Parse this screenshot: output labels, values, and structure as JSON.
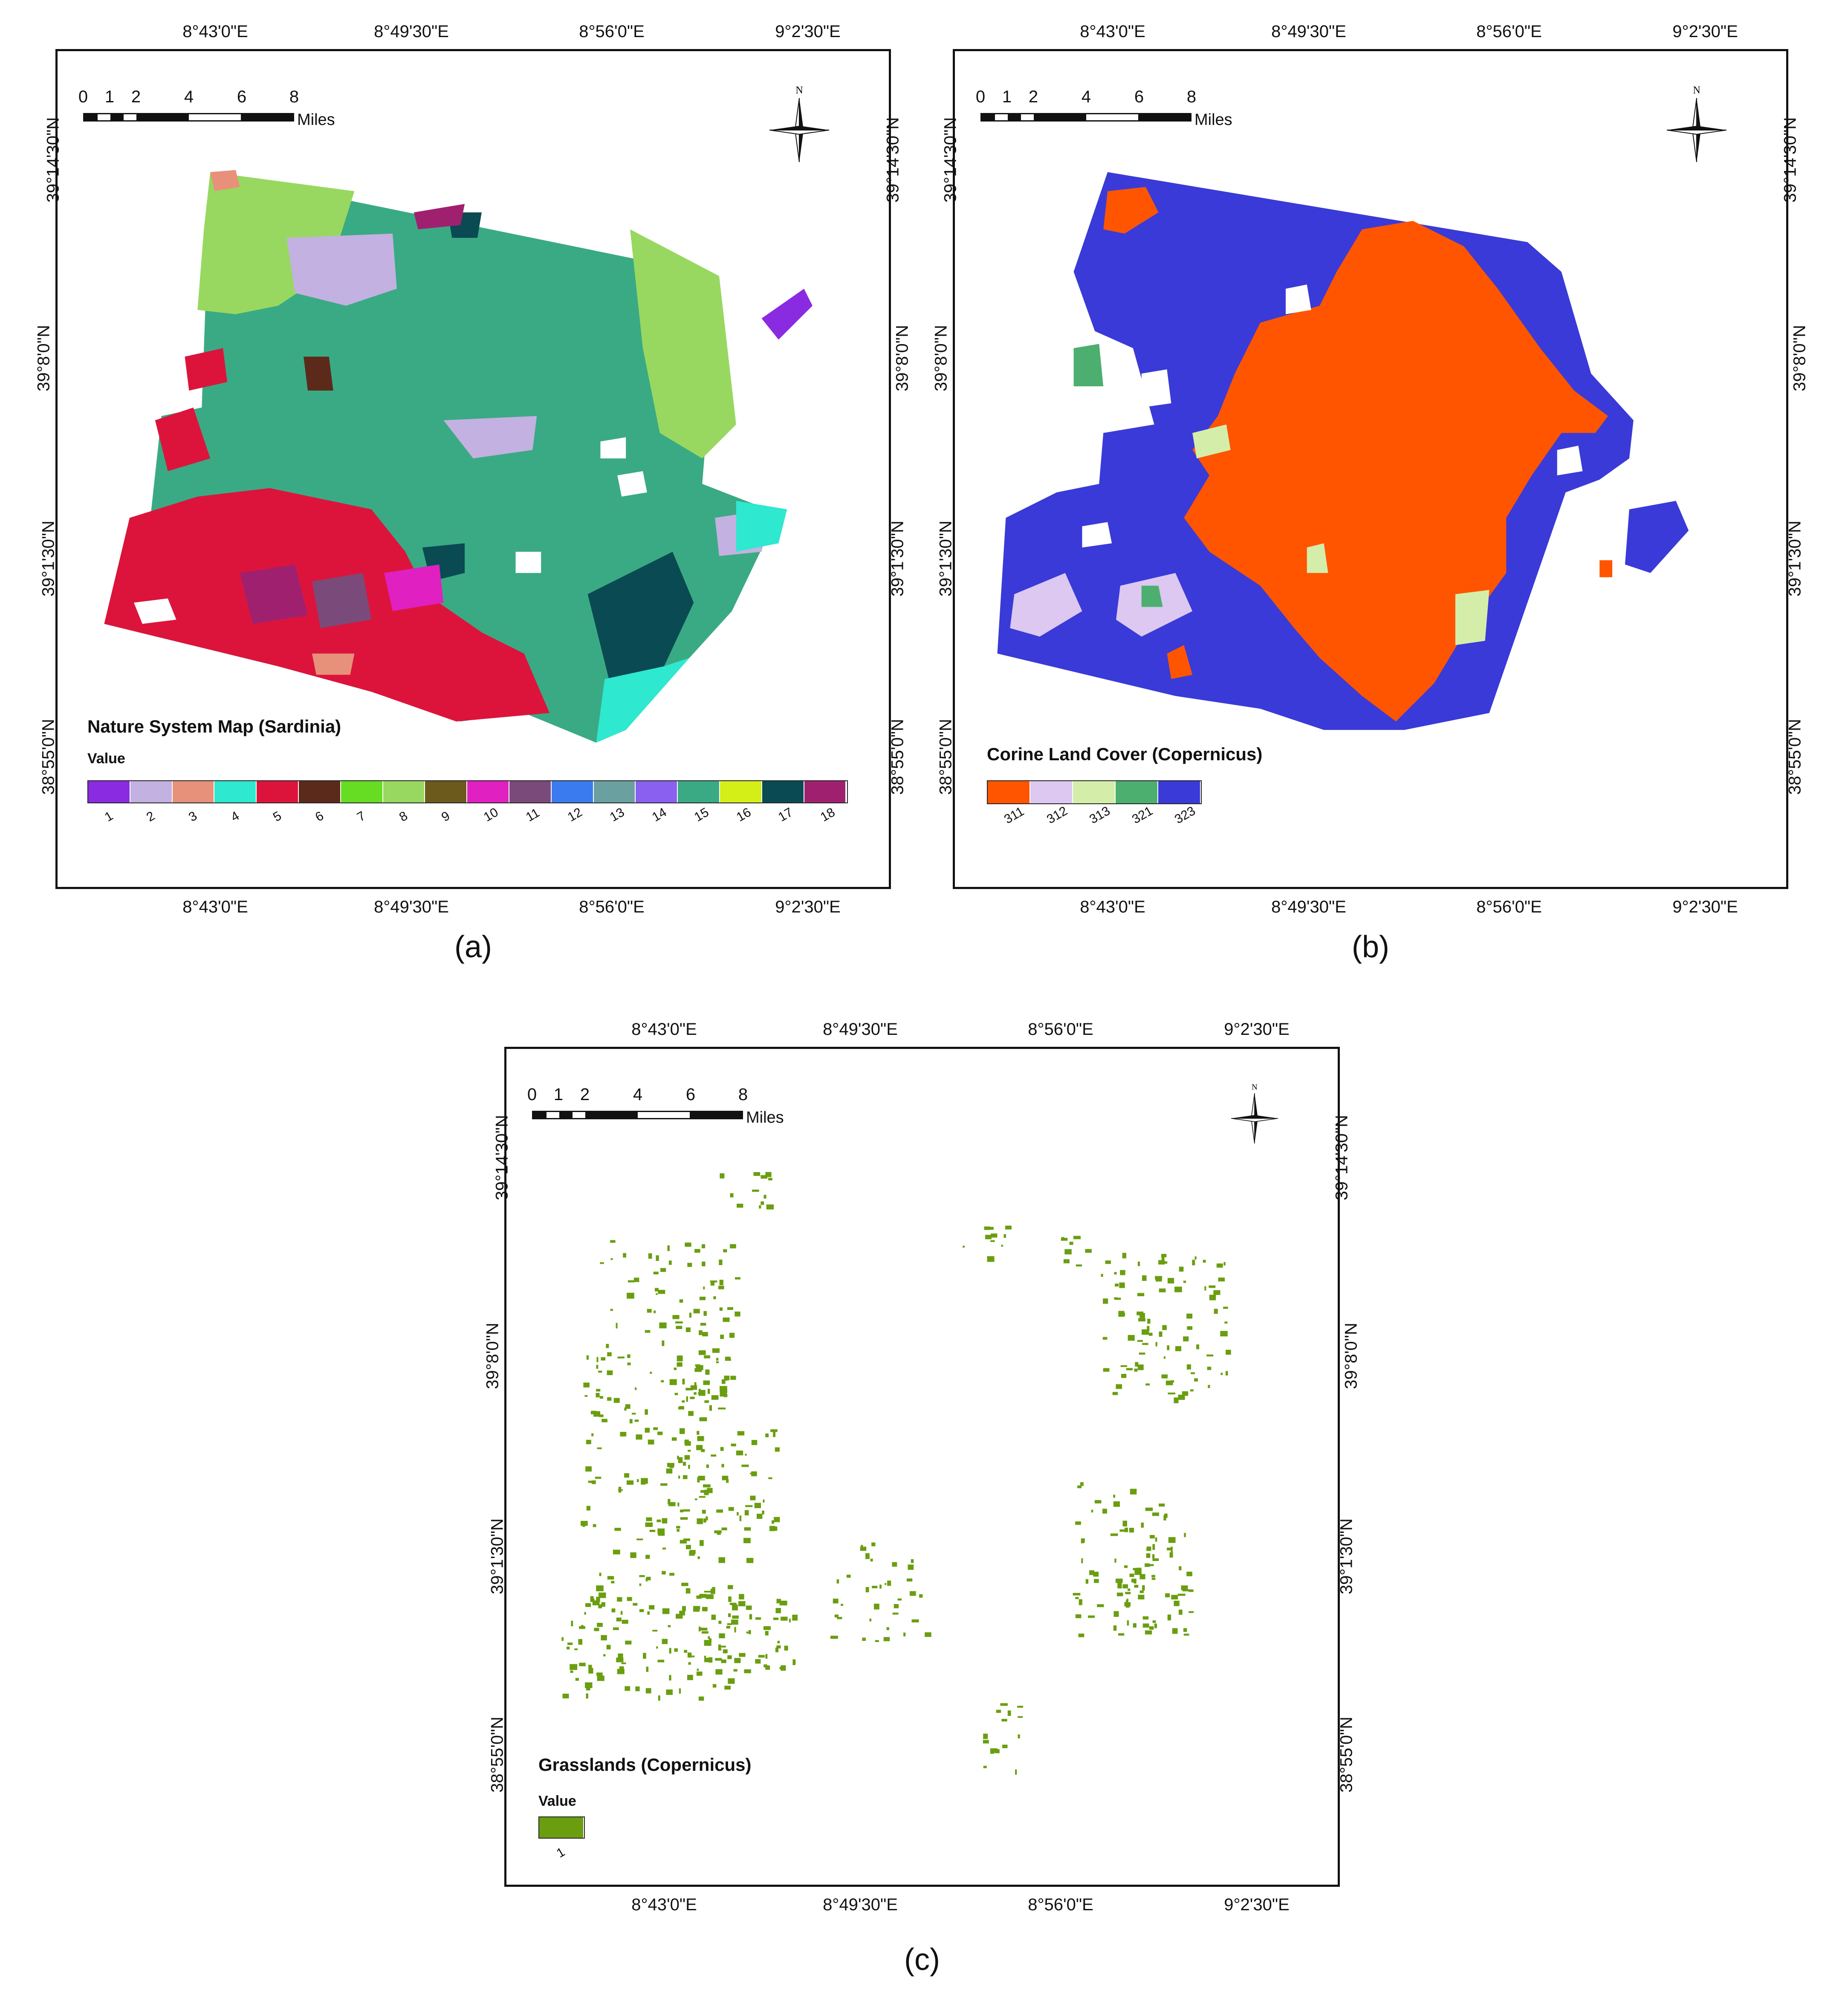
{
  "panels": [
    {
      "id": "a",
      "label": "(a)",
      "lon_ticks": [
        "8°43'0\"E",
        "8°49'30\"E",
        "8°56'0\"E",
        "9°2'30\"E"
      ],
      "lat_ticks": [
        "39°14'30\"N",
        "39°8'0\"N",
        "39°1'30\"N",
        "38°55'0\"N"
      ],
      "scale": {
        "ticks": [
          "0",
          "1",
          "2",
          "4",
          "6",
          "8"
        ],
        "unit": "Miles"
      },
      "north_label": "N",
      "legend": {
        "title": "Nature System Map (Sardinia)",
        "value_label": "Value",
        "classes": [
          {
            "value": "1",
            "color": "#8a2be2"
          },
          {
            "value": "2",
            "color": "#c3b1e1"
          },
          {
            "value": "3",
            "color": "#e8917a"
          },
          {
            "value": "4",
            "color": "#2ee8cf"
          },
          {
            "value": "5",
            "color": "#dc143c"
          },
          {
            "value": "6",
            "color": "#5c2a1a"
          },
          {
            "value": "7",
            "color": "#66dd22"
          },
          {
            "value": "8",
            "color": "#98d860"
          },
          {
            "value": "9",
            "color": "#6b5a1c"
          },
          {
            "value": "10",
            "color": "#e020c0"
          },
          {
            "value": "11",
            "color": "#7a4a7a"
          },
          {
            "value": "12",
            "color": "#3a7cf0"
          },
          {
            "value": "13",
            "color": "#6aa0a0"
          },
          {
            "value": "14",
            "color": "#8a60f0"
          },
          {
            "value": "15",
            "color": "#3aaa84"
          },
          {
            "value": "16",
            "color": "#d4ee18"
          },
          {
            "value": "17",
            "color": "#0a4a52"
          },
          {
            "value": "18",
            "color": "#a02070"
          }
        ]
      }
    },
    {
      "id": "b",
      "label": "(b)",
      "lon_ticks": [
        "8°43'0\"E",
        "8°49'30\"E",
        "8°56'0\"E",
        "9°2'30\"E"
      ],
      "lat_ticks": [
        "39°14'30\"N",
        "39°8'0\"N",
        "39°1'30\"N",
        "38°55'0\"N"
      ],
      "scale": {
        "ticks": [
          "0",
          "1",
          "2",
          "4",
          "6",
          "8"
        ],
        "unit": "Miles"
      },
      "north_label": "N",
      "legend": {
        "title": "Corine Land Cover (Copernicus)",
        "classes": [
          {
            "value": "311",
            "color": "#ff5500"
          },
          {
            "value": "312",
            "color": "#dcc8f0"
          },
          {
            "value": "313",
            "color": "#d4eeaa"
          },
          {
            "value": "321",
            "color": "#4caf70"
          },
          {
            "value": "323",
            "color": "#3a3ad8"
          }
        ]
      }
    },
    {
      "id": "c",
      "label": "(c)",
      "lon_ticks": [
        "8°43'0\"E",
        "8°49'30\"E",
        "8°56'0\"E",
        "9°2'30\"E"
      ],
      "lat_ticks": [
        "39°14'30\"N",
        "39°8'0\"N",
        "39°1'30\"N",
        "38°55'0\"N"
      ],
      "scale": {
        "ticks": [
          "0",
          "1",
          "2",
          "4",
          "6",
          "8"
        ],
        "unit": "Miles"
      },
      "north_label": "N",
      "legend": {
        "title": "Grasslands (Copernicus)",
        "value_label": "Value",
        "classes": [
          {
            "value": "1",
            "color": "#6a9e10"
          }
        ]
      }
    }
  ]
}
